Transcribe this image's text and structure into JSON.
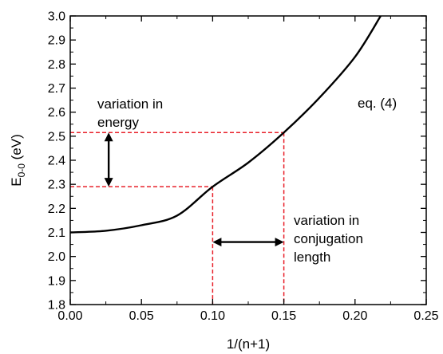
{
  "chart_data": {
    "type": "line",
    "xlabel": "1/(n+1)",
    "ylabel": {
      "main": "E",
      "sub": "0-0",
      "unit": " (eV)"
    },
    "xlim": [
      0.0,
      0.25
    ],
    "ylim": [
      1.8,
      3.0
    ],
    "x_ticks": [
      0.0,
      0.05,
      0.1,
      0.15,
      0.2,
      0.25
    ],
    "x_tick_labels": [
      "0.00",
      "0.05",
      "0.10",
      "0.15",
      "0.20",
      "0.25"
    ],
    "y_ticks": [
      1.8,
      1.9,
      2.0,
      2.1,
      2.2,
      2.3,
      2.4,
      2.5,
      2.6,
      2.7,
      2.8,
      2.9,
      3.0
    ],
    "y_tick_labels": [
      "1.8",
      "1.9",
      "2.0",
      "2.1",
      "2.2",
      "2.3",
      "2.4",
      "2.5",
      "2.6",
      "2.7",
      "2.8",
      "2.9",
      "3.0"
    ],
    "grid": false,
    "series": [
      {
        "label": "eq. (4)",
        "color": "#000000",
        "x": [
          0.0,
          0.025,
          0.05,
          0.075,
          0.1,
          0.125,
          0.15,
          0.175,
          0.2,
          0.218
        ],
        "y": [
          2.1,
          2.107,
          2.13,
          2.17,
          2.29,
          2.39,
          2.515,
          2.66,
          2.83,
          3.0
        ]
      }
    ],
    "annotations": {
      "guide_color": "#e8202a",
      "energy_label": [
        "variation in",
        "energy"
      ],
      "energy_range": [
        2.29,
        2.515
      ],
      "energy_arrow_x": 0.027,
      "length_label": [
        "variation in",
        "conjugation",
        "length"
      ],
      "length_range": [
        0.1,
        0.15
      ],
      "length_arrow_y": 2.06
    }
  }
}
